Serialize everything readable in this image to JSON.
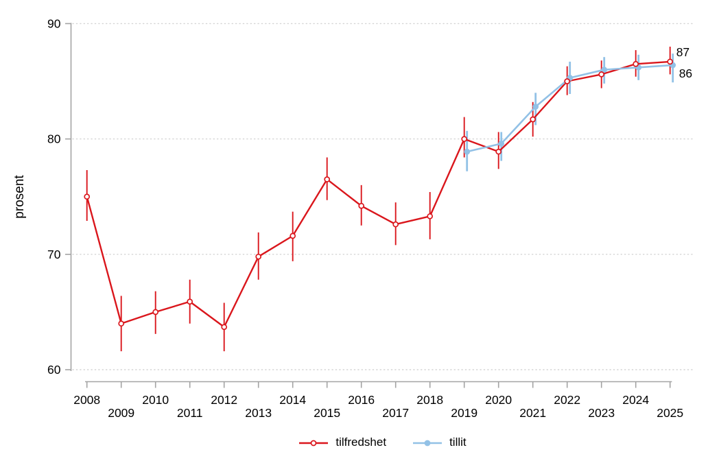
{
  "figure": {
    "background": "#ffffff",
    "axis_color": "#a3a3a3",
    "grid_color": "#d4d4d4",
    "text_color": "#000000"
  },
  "chart_data": {
    "type": "line",
    "title": "",
    "xlabel": "",
    "ylabel": "prosent",
    "ylim": [
      58.5,
      90
    ],
    "yticks": [
      60,
      70,
      80,
      90
    ],
    "xticks": [
      2008,
      2009,
      2010,
      2011,
      2012,
      2013,
      2014,
      2015,
      2016,
      2017,
      2018,
      2019,
      2020,
      2021,
      2022,
      2023,
      2024,
      2025
    ],
    "grid": "horizontal-dotted",
    "legend_position": "bottom-center",
    "error_bars": true,
    "series": [
      {
        "name": "tilfredshet",
        "color": "#da161c",
        "marker": "open-circle",
        "x": [
          2008,
          2009,
          2010,
          2011,
          2012,
          2013,
          2014,
          2015,
          2016,
          2017,
          2018,
          2019,
          2020,
          2021,
          2022,
          2023,
          2024,
          2025
        ],
        "values": [
          75.0,
          64.0,
          65.0,
          65.9,
          63.7,
          69.8,
          71.6,
          76.5,
          74.2,
          72.6,
          73.3,
          80.0,
          78.9,
          81.7,
          85.0,
          85.6,
          86.5,
          86.7
        ],
        "ci_low": [
          72.9,
          61.6,
          63.1,
          64.0,
          61.6,
          67.8,
          69.4,
          74.7,
          72.5,
          70.8,
          71.3,
          78.4,
          77.4,
          80.2,
          83.8,
          84.4,
          85.4,
          85.6
        ],
        "ci_high": [
          77.3,
          66.4,
          66.8,
          67.8,
          65.8,
          71.9,
          73.7,
          78.4,
          76.0,
          74.5,
          75.4,
          81.9,
          80.6,
          83.2,
          86.3,
          86.8,
          87.7,
          88.0
        ],
        "end_label": "87"
      },
      {
        "name": "tillit",
        "color": "#92c1e6",
        "marker": "filled-circle",
        "x": [
          2019,
          2020,
          2021,
          2022,
          2023,
          2024,
          2025
        ],
        "values": [
          78.9,
          79.6,
          82.8,
          85.3,
          86.0,
          86.2,
          86.4
        ],
        "ci_low": [
          77.2,
          78.1,
          81.2,
          83.9,
          84.8,
          85.1,
          84.9
        ],
        "ci_high": [
          80.7,
          80.6,
          84.0,
          86.7,
          87.1,
          87.3,
          87.4
        ],
        "end_label": "86"
      }
    ]
  }
}
